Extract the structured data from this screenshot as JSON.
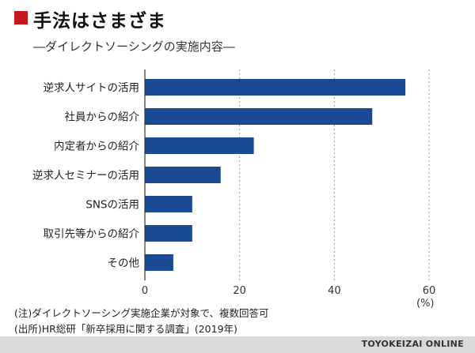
{
  "header": {
    "title": "手法はさまざま",
    "subtitle": "―ダイレクトソーシングの実施内容―"
  },
  "chart_data": {
    "type": "bar",
    "orientation": "horizontal",
    "categories": [
      "逆求人サイトの活用",
      "社員からの紹介",
      "内定者からの紹介",
      "逆求人セミナーの活用",
      "SNSの活用",
      "取引先等からの紹介",
      "その他"
    ],
    "values": [
      55,
      48,
      23,
      16,
      10,
      10,
      6
    ],
    "xlim": [
      0,
      60
    ],
    "xticks": [
      "0",
      "20",
      "40",
      "60"
    ],
    "unit_label": "(%)",
    "grid": true,
    "bar_color": "#1b4a94"
  },
  "notes": {
    "line1": "(注)ダイレクトソーシング実施企業が対象で、複数回答可",
    "line2": "(出所)HR総研「新卒採用に関する調査」(2019年)"
  },
  "footer": {
    "brand": "TOYOKEIZAI ONLINE"
  }
}
